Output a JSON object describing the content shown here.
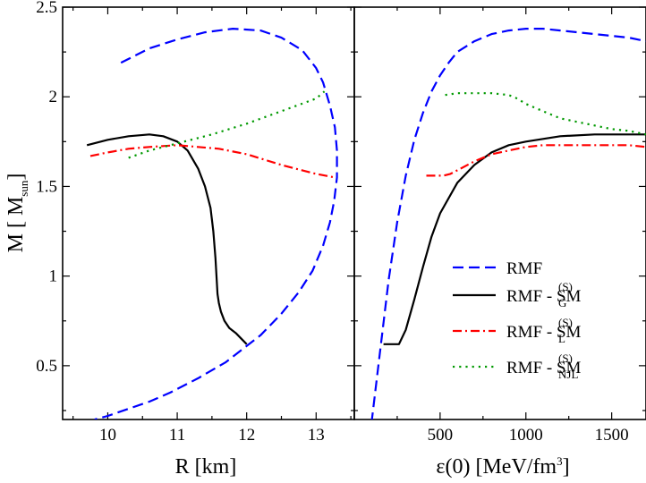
{
  "colors": {
    "rmf": "#0000ff",
    "sm_g": "#000000",
    "sm_l": "#ff0000",
    "sm_njl": "#009900"
  },
  "legend": [
    {
      "id": "rmf",
      "text": "RMF",
      "sup": "",
      "sub": ""
    },
    {
      "id": "sm_g",
      "text": "RMF - SM",
      "sup": "(S)",
      "sub": "G"
    },
    {
      "id": "sm_l",
      "text": "RMF - SM",
      "sup": "(S)",
      "sub": "L"
    },
    {
      "id": "sm_njl",
      "text": "RMF - SM",
      "sup": "(S)",
      "sub": "NJL"
    }
  ],
  "chart_data": [
    {
      "type": "line",
      "panel": "left",
      "xlabel": "R [km]",
      "ylabel_main": "M [ M",
      "ylabel_sub": "sun",
      "ylabel_end": "]",
      "xlim": [
        9.35,
        13.55
      ],
      "ylim": [
        0.2,
        2.5
      ],
      "xticks": [
        10,
        11,
        12,
        13
      ],
      "yticks": [
        0.5,
        1,
        1.5,
        2,
        2.5
      ],
      "ytick_labels": [
        "0.5",
        "1",
        "1.5",
        "2",
        "2.5"
      ],
      "series": [
        {
          "id": "rmf",
          "name": "RMF",
          "style": "dashed",
          "x": [
            10.19,
            10.6,
            11.0,
            11.4,
            11.8,
            12.2,
            12.5,
            12.8,
            13.0,
            13.1,
            13.2,
            13.27,
            13.3,
            13.3,
            13.26,
            13.2,
            13.1,
            12.95,
            12.75,
            12.5,
            12.2,
            12.0,
            11.7,
            11.3,
            10.9,
            10.6,
            10.3,
            10.0,
            9.81
          ],
          "y": [
            2.19,
            2.27,
            2.32,
            2.36,
            2.38,
            2.37,
            2.33,
            2.26,
            2.16,
            2.08,
            1.95,
            1.83,
            1.7,
            1.55,
            1.42,
            1.3,
            1.17,
            1.03,
            0.91,
            0.79,
            0.67,
            0.61,
            0.52,
            0.43,
            0.35,
            0.3,
            0.26,
            0.22,
            0.2
          ]
        },
        {
          "id": "sm_g",
          "name": "RMF - SM(S) G",
          "style": "solid",
          "x": [
            9.7,
            10.0,
            10.3,
            10.6,
            10.8,
            11.0,
            11.15,
            11.3,
            11.4,
            11.48,
            11.52,
            11.55,
            11.57,
            11.58,
            11.6,
            11.63,
            11.68,
            11.75,
            11.85,
            11.95,
            12.0
          ],
          "y": [
            1.73,
            1.76,
            1.78,
            1.79,
            1.78,
            1.75,
            1.7,
            1.6,
            1.5,
            1.38,
            1.25,
            1.1,
            0.97,
            0.9,
            0.85,
            0.8,
            0.75,
            0.71,
            0.68,
            0.64,
            0.62
          ]
        },
        {
          "id": "sm_l",
          "name": "RMF - SM(S) L",
          "style": "dashdot",
          "x": [
            9.75,
            10.0,
            10.3,
            10.6,
            11.0,
            11.3,
            11.6,
            12.0,
            12.5,
            13.0,
            13.27
          ],
          "y": [
            1.67,
            1.69,
            1.71,
            1.72,
            1.73,
            1.72,
            1.71,
            1.68,
            1.62,
            1.57,
            1.55
          ]
        },
        {
          "id": "sm_njl",
          "name": "RMF - SM(S) NJL",
          "style": "dotted",
          "x": [
            10.3,
            10.6,
            11.0,
            11.5,
            12.0,
            12.5,
            13.0,
            13.12
          ],
          "y": [
            1.66,
            1.7,
            1.74,
            1.79,
            1.85,
            1.92,
            1.99,
            2.03
          ]
        }
      ]
    },
    {
      "type": "line",
      "panel": "right",
      "xlabel_main": "ε(0) [MeV/fm",
      "xlabel_sup": "3",
      "xlabel_end": "]",
      "xlim": [
        0,
        1700
      ],
      "ylim": [
        0.2,
        2.5
      ],
      "xticks": [
        500,
        1000,
        1500
      ],
      "yticks": [
        0.5,
        1,
        1.5,
        2,
        2.5
      ],
      "series": [
        {
          "id": "rmf",
          "name": "RMF",
          "style": "dashed",
          "x": [
            100,
            150,
            200,
            250,
            300,
            350,
            400,
            450,
            500,
            550,
            600,
            700,
            800,
            900,
            1000,
            1100,
            1200,
            1300,
            1400,
            1500,
            1600,
            1700
          ],
          "y": [
            0.18,
            0.58,
            0.98,
            1.3,
            1.56,
            1.76,
            1.91,
            2.03,
            2.12,
            2.19,
            2.25,
            2.31,
            2.35,
            2.37,
            2.38,
            2.38,
            2.37,
            2.36,
            2.35,
            2.34,
            2.33,
            2.31
          ]
        },
        {
          "id": "sm_g",
          "name": "RMF - SM(S) G",
          "style": "solid",
          "x": [
            170,
            260,
            300,
            350,
            400,
            450,
            500,
            600,
            700,
            800,
            900,
            1000,
            1200,
            1400,
            1600,
            1700
          ],
          "y": [
            0.62,
            0.62,
            0.7,
            0.87,
            1.05,
            1.22,
            1.35,
            1.52,
            1.62,
            1.69,
            1.73,
            1.75,
            1.78,
            1.79,
            1.79,
            1.79
          ]
        },
        {
          "id": "sm_l",
          "name": "RMF - SM(S) L",
          "style": "dashdot",
          "x": [
            420,
            470,
            520,
            560,
            600,
            700,
            800,
            900,
            1000,
            1100,
            1200,
            1300,
            1400,
            1500,
            1600,
            1700
          ],
          "y": [
            1.56,
            1.56,
            1.56,
            1.57,
            1.59,
            1.64,
            1.68,
            1.7,
            1.72,
            1.73,
            1.73,
            1.73,
            1.73,
            1.73,
            1.73,
            1.72
          ]
        },
        {
          "id": "sm_njl",
          "name": "RMF - SM(S) NJL",
          "style": "dotted",
          "x": [
            530,
            600,
            700,
            800,
            900,
            950,
            1000,
            1100,
            1200,
            1300,
            1400,
            1500,
            1600,
            1700
          ],
          "y": [
            2.01,
            2.02,
            2.02,
            2.02,
            2.01,
            1.99,
            1.96,
            1.92,
            1.88,
            1.86,
            1.84,
            1.82,
            1.81,
            1.79
          ]
        }
      ]
    }
  ]
}
